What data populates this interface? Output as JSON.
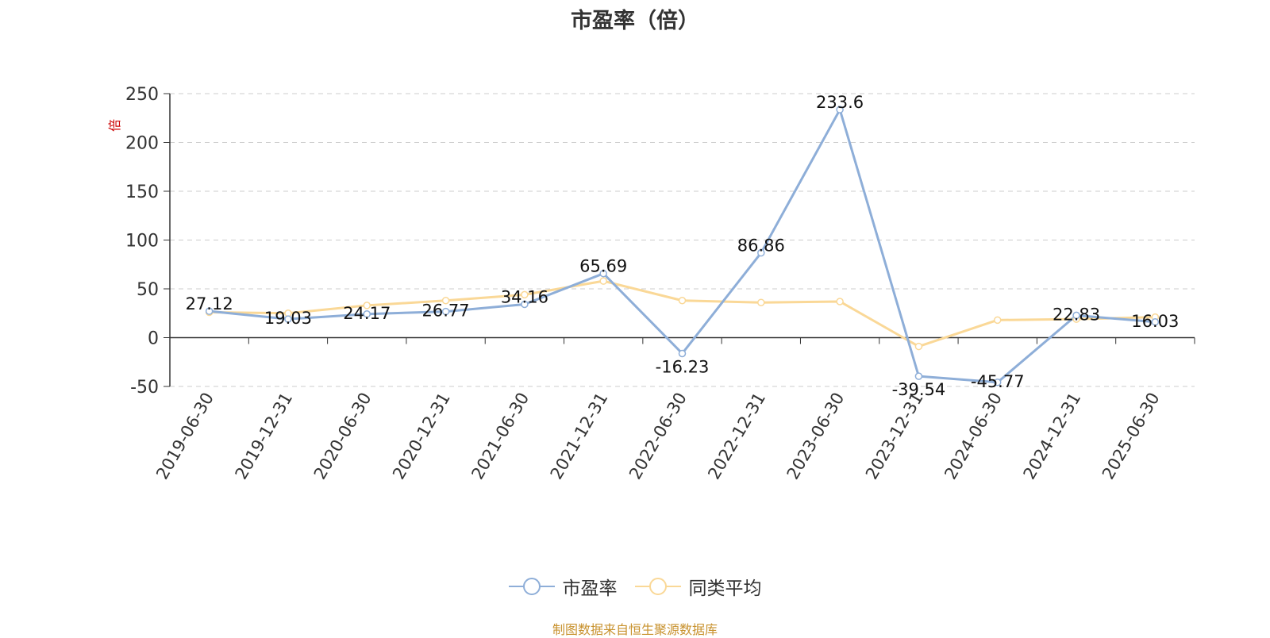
{
  "title": "市盈率（倍）",
  "source_note": "制图数据来自恒生聚源数据库",
  "colors": {
    "pe": "#8eaed8",
    "avg": "#fad897",
    "axis": "#333333",
    "grid": "#cccccc",
    "unit": "#cc0000"
  },
  "chart_data": {
    "type": "line",
    "title": "市盈率（倍）",
    "ylabel": "倍",
    "ylim": [
      -50,
      250
    ],
    "yticks": [
      -50,
      0,
      50,
      100,
      150,
      200,
      250
    ],
    "grid": true,
    "legend_position": "bottom",
    "categories": [
      "2019-06-30",
      "2019-12-31",
      "2020-06-30",
      "2020-12-31",
      "2021-06-30",
      "2021-12-31",
      "2022-06-30",
      "2022-12-31",
      "2023-06-30",
      "2023-12-31",
      "2024-06-30",
      "2024-12-31",
      "2025-06-30"
    ],
    "series": [
      {
        "name": "市盈率",
        "color": "#8eaed8",
        "show_labels": true,
        "values": [
          27.12,
          19.03,
          24.17,
          26.77,
          34.16,
          65.69,
          -16.23,
          86.86,
          233.6,
          -39.54,
          -45.77,
          22.83,
          16.03
        ]
      },
      {
        "name": "同类平均",
        "color": "#fad897",
        "show_labels": false,
        "values": [
          26,
          25,
          33,
          38,
          44,
          58,
          38,
          36,
          37,
          -9,
          18,
          19,
          21
        ]
      }
    ]
  }
}
